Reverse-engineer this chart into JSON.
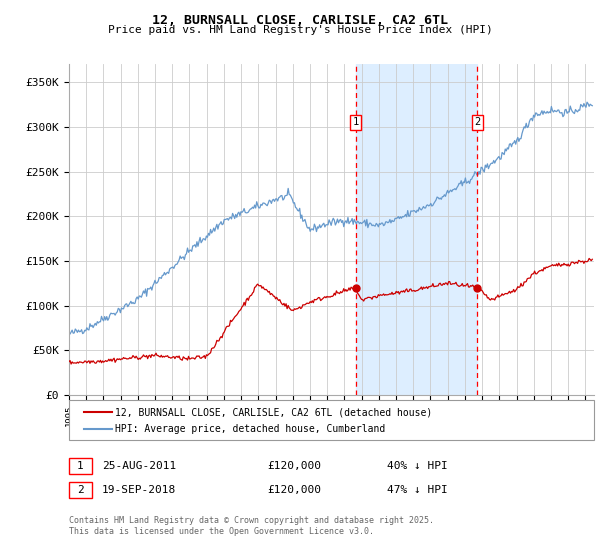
{
  "title": "12, BURNSALL CLOSE, CARLISLE, CA2 6TL",
  "subtitle": "Price paid vs. HM Land Registry's House Price Index (HPI)",
  "ylabel_ticks": [
    "£0",
    "£50K",
    "£100K",
    "£150K",
    "£200K",
    "£250K",
    "£300K",
    "£350K"
  ],
  "ytick_values": [
    0,
    50000,
    100000,
    150000,
    200000,
    250000,
    300000,
    350000
  ],
  "ylim": [
    0,
    370000
  ],
  "xlim_start": 1995.0,
  "xlim_end": 2025.5,
  "xtick_years": [
    1995,
    1996,
    1997,
    1998,
    1999,
    2000,
    2001,
    2002,
    2003,
    2004,
    2005,
    2006,
    2007,
    2008,
    2009,
    2010,
    2011,
    2012,
    2013,
    2014,
    2015,
    2016,
    2017,
    2018,
    2019,
    2020,
    2021,
    2022,
    2023,
    2024,
    2025
  ],
  "event1_x": 2011.65,
  "event1_label": "1",
  "event1_date": "25-AUG-2011",
  "event1_price": "£120,000",
  "event1_pct": "40% ↓ HPI",
  "event2_x": 2018.72,
  "event2_label": "2",
  "event2_date": "19-SEP-2018",
  "event2_price": "£120,000",
  "event2_pct": "47% ↓ HPI",
  "legend_red_label": "12, BURNSALL CLOSE, CARLISLE, CA2 6TL (detached house)",
  "legend_blue_label": "HPI: Average price, detached house, Cumberland",
  "footnote": "Contains HM Land Registry data © Crown copyright and database right 2025.\nThis data is licensed under the Open Government Licence v3.0.",
  "grid_color": "#cccccc",
  "red_color": "#cc0000",
  "blue_color": "#6699cc",
  "span_color": "#ddeeff"
}
